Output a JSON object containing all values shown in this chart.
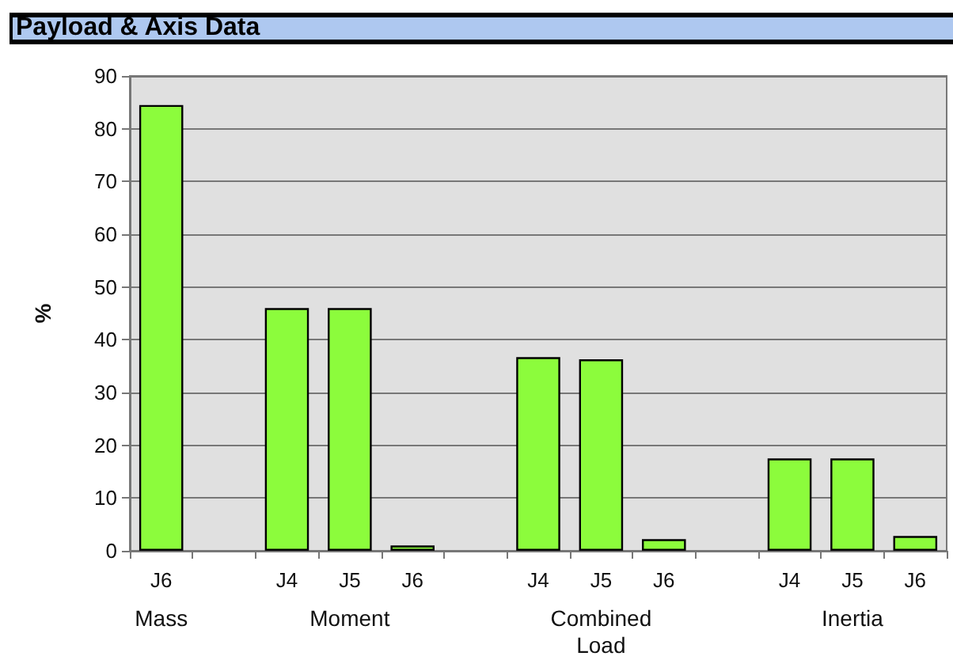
{
  "chart_data": {
    "type": "bar",
    "title": "Payload & Axis Data",
    "ylabel": "%",
    "categories": [
      "J6",
      null,
      "J4",
      "J5",
      "J6",
      null,
      "J4",
      "J5",
      "J6",
      null,
      "J4",
      "J5",
      "J6"
    ],
    "values": [
      84.5,
      null,
      46,
      46,
      1,
      null,
      36.7,
      36.3,
      2.2,
      null,
      17.5,
      17.5,
      2.8
    ],
    "color": "#8cfc3c",
    "ylim": [
      0,
      90
    ],
    "yticks": [
      0,
      10,
      20,
      30,
      40,
      50,
      60,
      70,
      80,
      90
    ],
    "grid": "y",
    "annotations": [
      "Mass",
      "Moment",
      "Combined\nLoad",
      "Inertia"
    ]
  }
}
